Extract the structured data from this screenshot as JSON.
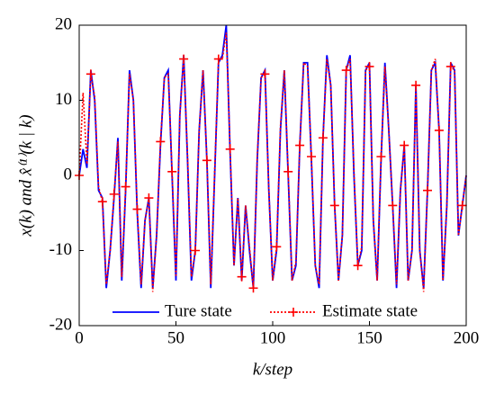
{
  "chart_data": {
    "type": "line",
    "xlabel": "k/step",
    "ylabel": "x(k) and x̂⁽¹⁾(k | k)",
    "x": [
      0,
      2,
      4,
      6,
      8,
      10,
      12,
      14,
      16,
      18,
      20,
      22,
      24,
      26,
      28,
      30,
      32,
      34,
      36,
      38,
      40,
      42,
      44,
      46,
      48,
      50,
      52,
      54,
      56,
      58,
      60,
      62,
      64,
      66,
      68,
      70,
      72,
      74,
      76,
      78,
      80,
      82,
      84,
      86,
      88,
      90,
      92,
      94,
      96,
      98,
      100,
      102,
      104,
      106,
      108,
      110,
      112,
      114,
      116,
      118,
      120,
      122,
      124,
      126,
      128,
      130,
      132,
      134,
      136,
      138,
      140,
      142,
      144,
      146,
      148,
      150,
      152,
      154,
      156,
      158,
      160,
      162,
      164,
      166,
      168,
      170,
      172,
      174,
      176,
      178,
      180,
      182,
      184,
      186,
      188,
      190,
      192,
      194,
      196,
      198,
      200
    ],
    "series": [
      {
        "name": "Ture state",
        "color": "#0000ff",
        "style": "solid",
        "values": [
          0,
          3.5,
          1,
          14,
          10,
          -2,
          -3,
          -15,
          -10,
          -3,
          5,
          -14,
          -2,
          14,
          10,
          -5,
          -15,
          -6,
          -3,
          -15,
          -8,
          4,
          13,
          14,
          0,
          -14,
          8,
          16,
          2,
          -14,
          -10,
          6,
          14,
          2,
          -15,
          0,
          15,
          16,
          20,
          3,
          -12,
          -3,
          -14,
          -4,
          -10,
          -15,
          2,
          13,
          14,
          -2,
          -14,
          -10,
          6,
          14,
          0,
          -14,
          -12,
          4,
          15,
          15,
          2,
          -12,
          -15,
          5,
          16,
          12,
          -4,
          -14,
          -8,
          14,
          16,
          0,
          -12,
          -10,
          14,
          15,
          -6,
          -14,
          2,
          15,
          6,
          -4,
          -15,
          -2,
          4,
          -14,
          -10,
          12,
          -10,
          -15,
          -2,
          14,
          15,
          6,
          -14,
          -4,
          15,
          14,
          -8,
          -4,
          0
        ]
      },
      {
        "name": "Estimate state",
        "color": "#ff0000",
        "style": "dotted",
        "marker": "+",
        "values": [
          0,
          11,
          1.5,
          13.5,
          10.5,
          -1.5,
          -3.5,
          -14.5,
          -10,
          -2.5,
          4.5,
          -13.5,
          -1.5,
          13.5,
          10,
          -4.5,
          -14.5,
          -6,
          -3,
          -15.5,
          -8,
          4.5,
          13,
          13.5,
          0.5,
          -13.5,
          8,
          15.5,
          2.5,
          -13.5,
          -10,
          6,
          14,
          2,
          -14.5,
          0.5,
          15.5,
          15.5,
          19,
          3.5,
          -12,
          -3,
          -13.5,
          -4,
          -9.5,
          -15,
          2.5,
          13,
          13.5,
          -2,
          -14,
          -9.5,
          6.5,
          14,
          0.5,
          -14,
          -11.5,
          4,
          15,
          14.5,
          2.5,
          -12,
          -14.5,
          5,
          15.5,
          12,
          -4,
          -14,
          -8,
          14,
          15.5,
          0.5,
          -12,
          -9.5,
          14,
          14.5,
          -6,
          -14,
          2.5,
          14.5,
          6,
          -4,
          -14.5,
          -2,
          4,
          -14,
          -10,
          12,
          -10,
          -15.5,
          -2,
          14,
          15.5,
          6,
          -14,
          -4,
          14.5,
          14,
          -8,
          -4,
          0
        ]
      }
    ],
    "xlim": [
      0,
      200
    ],
    "xticks": [
      0,
      50,
      100,
      150,
      200
    ],
    "ylim": [
      -20,
      20
    ],
    "yticks": [
      -20,
      -10,
      0,
      10,
      20
    ],
    "legend": "lower center"
  }
}
